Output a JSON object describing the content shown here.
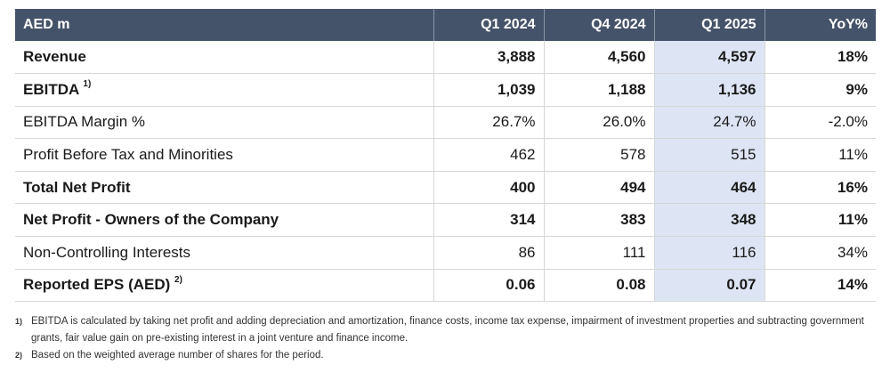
{
  "table": {
    "headers": [
      "AED m",
      "Q1 2024",
      "Q4 2024",
      "Q1 2025",
      "YoY%"
    ],
    "rows": [
      {
        "label": "Revenue",
        "sup": "",
        "values": [
          "3,888",
          "4,560",
          "4,597",
          "18%"
        ],
        "bold": true
      },
      {
        "label": "EBITDA",
        "sup": "1)",
        "values": [
          "1,039",
          "1,188",
          "1,136",
          "9%"
        ],
        "bold": true
      },
      {
        "label": "EBITDA Margin %",
        "sup": "",
        "values": [
          "26.7%",
          "26.0%",
          "24.7%",
          "-2.0%"
        ],
        "bold": false
      },
      {
        "label": "Profit Before Tax and Minorities",
        "sup": "",
        "values": [
          "462",
          "578",
          "515",
          "11%"
        ],
        "bold": false
      },
      {
        "label": "Total Net Profit",
        "sup": "",
        "values": [
          "400",
          "494",
          "464",
          "16%"
        ],
        "bold": true
      },
      {
        "label": "Net Profit - Owners of the Company",
        "sup": "",
        "values": [
          "314",
          "383",
          "348",
          "11%"
        ],
        "bold": true
      },
      {
        "label": "Non-Controlling Interests",
        "sup": "",
        "values": [
          "86",
          "111",
          "116",
          "34%"
        ],
        "bold": false
      },
      {
        "label": "Reported EPS (AED)",
        "sup": "2)",
        "values": [
          "0.06",
          "0.08",
          "0.07",
          "14%"
        ],
        "bold": true
      }
    ],
    "highlight_color": "#dde5f4",
    "header_color": "#45536a"
  },
  "footnotes": [
    {
      "mark": "1)",
      "text": "EBITDA is calculated by taking net profit and adding depreciation and amortization, finance costs, income tax expense, impairment of investment properties and subtracting government grants, fair value gain on pre-existing interest in a joint venture and finance income."
    },
    {
      "mark": "2)",
      "text": "Based on the weighted average number of shares for the period."
    }
  ]
}
